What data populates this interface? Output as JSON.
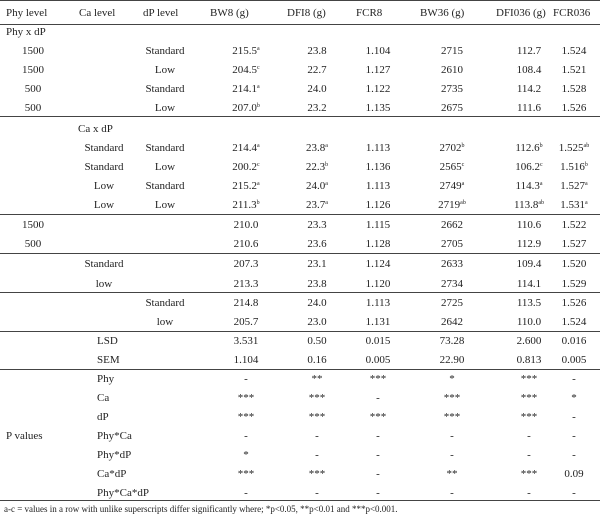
{
  "header": [
    "Phy level",
    "Ca level",
    "dP level",
    "BW8 (g)",
    "DFI8 (g)",
    "FCR8",
    "BW36 (g)",
    "DFI036 (g)",
    "FCR036"
  ],
  "rows": [
    {
      "id": "phy-x-dp",
      "label": "Phy x dP",
      "cells": [
        "",
        "",
        "",
        "",
        "",
        "",
        "",
        "",
        ""
      ]
    },
    {
      "id": "phy-dp-1",
      "cells": [
        "1500",
        "",
        "Standard",
        "215.5",
        "23.8",
        "1.104",
        "2715",
        "112.7",
        "1.524"
      ],
      "sups": [
        "",
        "",
        "",
        "a",
        "",
        "",
        "",
        "",
        ""
      ]
    },
    {
      "id": "phy-dp-2",
      "cells": [
        "1500",
        "",
        "Low",
        "204.5",
        "22.7",
        "1.127",
        "2610",
        "108.4",
        "1.521"
      ],
      "sups": [
        "",
        "",
        "",
        "c",
        "",
        "",
        "",
        "",
        ""
      ]
    },
    {
      "id": "phy-dp-3",
      "cells": [
        "500",
        "",
        "Standard",
        "214.1",
        "24.0",
        "1.122",
        "2735",
        "114.2",
        "1.528"
      ],
      "sups": [
        "",
        "",
        "",
        "a",
        "",
        "",
        "",
        "",
        ""
      ]
    },
    {
      "id": "phy-dp-4",
      "cells": [
        "500",
        "",
        "Low",
        "207.0",
        "23.2",
        "1.135",
        "2675",
        "111.6",
        "1.526"
      ],
      "sups": [
        "",
        "",
        "",
        "b",
        "",
        "",
        "",
        "",
        ""
      ]
    },
    {
      "id": "ca-x-dp",
      "label": "Ca x dP",
      "cells": [
        "",
        "",
        "",
        "",
        "",
        "",
        "",
        "",
        ""
      ]
    },
    {
      "id": "ca-dp-1",
      "cells": [
        "",
        "Standard",
        "Standard",
        "214.4",
        "23.8",
        "1.113",
        "2702",
        "112.6",
        "1.525"
      ],
      "sups": [
        "",
        "",
        "",
        "a",
        "a",
        "",
        "b",
        "b",
        "ab"
      ]
    },
    {
      "id": "ca-dp-2",
      "cells": [
        "",
        "Standard",
        "Low",
        "200.2",
        "22.3",
        "1.136",
        "2565",
        "106.2",
        "1.516"
      ],
      "sups": [
        "",
        "",
        "",
        "c",
        "b",
        "",
        "c",
        "c",
        "b"
      ]
    },
    {
      "id": "ca-dp-3",
      "cells": [
        "",
        "Low",
        "Standard",
        "215.2",
        "24.0",
        "1.113",
        "2749",
        "114.3",
        "1.527"
      ],
      "sups": [
        "",
        "",
        "",
        "a",
        "a",
        "",
        "a",
        "a",
        "a"
      ]
    },
    {
      "id": "ca-dp-4",
      "cells": [
        "",
        "Low",
        "Low",
        "211.3",
        "23.7",
        "1.126",
        "2719",
        "113.8",
        "1.531"
      ],
      "sups": [
        "",
        "",
        "",
        "b",
        "a",
        "",
        "ab",
        "ab",
        "a"
      ]
    },
    {
      "id": "phy-1",
      "cells": [
        "1500",
        "",
        "",
        "210.0",
        "23.3",
        "1.115",
        "2662",
        "110.6",
        "1.522"
      ]
    },
    {
      "id": "phy-2",
      "cells": [
        "500",
        "",
        "",
        "210.6",
        "23.6",
        "1.128",
        "2705",
        "112.9",
        "1.527"
      ]
    },
    {
      "id": "ca-1",
      "cells": [
        "",
        "Standard",
        "",
        "207.3",
        "23.1",
        "1.124",
        "2633",
        "109.4",
        "1.520"
      ]
    },
    {
      "id": "ca-2",
      "cells": [
        "",
        "low",
        "",
        "213.3",
        "23.8",
        "1.120",
        "2734",
        "114.1",
        "1.529"
      ]
    },
    {
      "id": "dp-1",
      "cells": [
        "",
        "",
        "Standard",
        "214.8",
        "24.0",
        "1.113",
        "2725",
        "113.5",
        "1.526"
      ]
    },
    {
      "id": "dp-2",
      "cells": [
        "",
        "",
        "low",
        "205.7",
        "23.0",
        "1.131",
        "2642",
        "110.0",
        "1.524"
      ]
    },
    {
      "id": "lsd",
      "cells": [
        "",
        "LSD",
        "",
        "3.531",
        "0.50",
        "0.015",
        "73.28",
        "2.600",
        "0.016"
      ]
    },
    {
      "id": "sem",
      "cells": [
        "",
        "SEM",
        "",
        "1.104",
        "0.16",
        "0.005",
        "22.90",
        "0.813",
        "0.005"
      ]
    },
    {
      "id": "pv-phy",
      "cells": [
        "",
        "Phy",
        "",
        "-",
        "**",
        "***",
        "*",
        "***",
        "-"
      ]
    },
    {
      "id": "pv-ca",
      "cells": [
        "",
        "Ca",
        "",
        "***",
        "***",
        "-",
        "***",
        "***",
        "*"
      ]
    },
    {
      "id": "pv-dp",
      "cells": [
        "",
        "dP",
        "",
        "***",
        "***",
        "***",
        "***",
        "***",
        "-"
      ]
    },
    {
      "id": "pv-phyca",
      "cells": [
        "P values",
        "Phy*Ca",
        "",
        "-",
        "-",
        "-",
        "-",
        "-",
        "-"
      ]
    },
    {
      "id": "pv-phydp",
      "cells": [
        "",
        "Phy*dP",
        "",
        "*",
        "-",
        "-",
        "-",
        "-",
        "-"
      ]
    },
    {
      "id": "pv-cadp",
      "cells": [
        "",
        "Ca*dP",
        "",
        "***",
        "***",
        "-",
        "**",
        "***",
        "0.09"
      ]
    },
    {
      "id": "pv-phycadp",
      "cells": [
        "",
        "Phy*Ca*dP",
        "",
        "-",
        "-",
        "-",
        "-",
        "-",
        "-"
      ]
    }
  ],
  "footnote": "a-c = values in a row with unlike superscripts differ significantly where; *p<0.05, **p<0.01 and ***p<0.001."
}
